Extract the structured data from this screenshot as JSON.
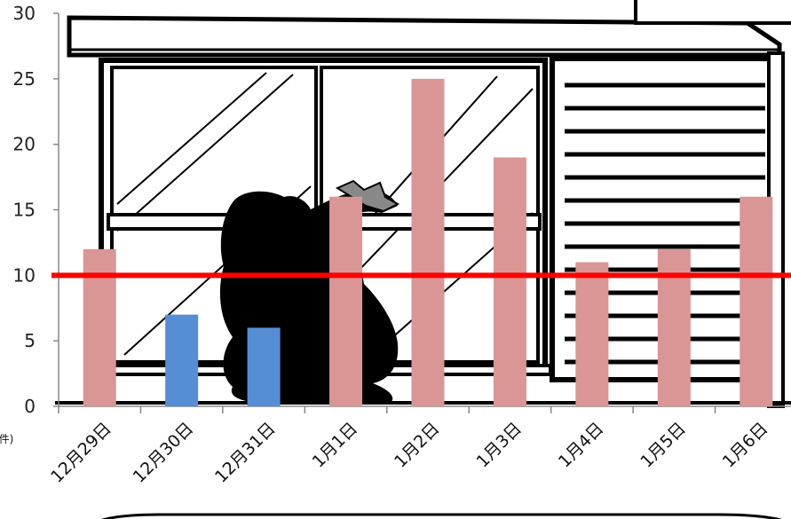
{
  "chart_data": {
    "type": "bar",
    "categories": [
      "12月29日",
      "12月30日",
      "12月31日",
      "1月1日",
      "1月2日",
      "1月3日",
      "1月4日",
      "1月5日",
      "1月6日"
    ],
    "values": [
      12,
      7,
      6,
      16,
      25,
      19,
      11,
      12,
      16
    ],
    "bar_colors": [
      "#d99694",
      "#558ed5",
      "#558ed5",
      "#d99694",
      "#d99694",
      "#d99694",
      "#d99694",
      "#d99694",
      "#d99694"
    ],
    "ylim": [
      0,
      30
    ],
    "yticks": [
      0,
      5,
      10,
      15,
      20,
      25,
      30
    ],
    "ylabel": "(件)",
    "reference_line": {
      "value": 10,
      "color": "#ff0000"
    },
    "grid": false,
    "background_illustration": "burglar-at-window"
  }
}
